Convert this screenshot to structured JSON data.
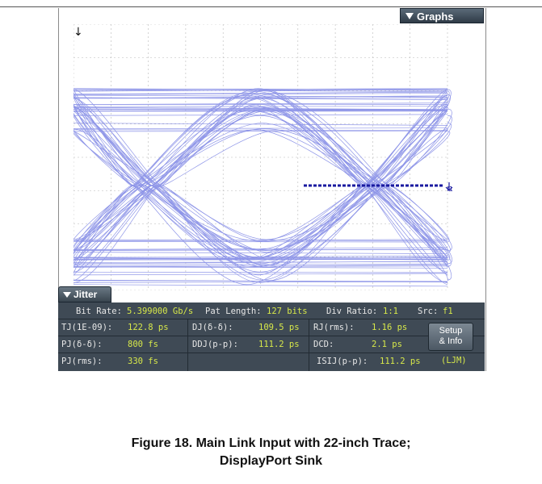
{
  "graphs_tab": {
    "label": "Graphs"
  },
  "marker": {
    "label": "f1"
  },
  "jitter_tab": {
    "label": "Jitter"
  },
  "measurements": {
    "bit_rate_label": "Bit Rate:",
    "bit_rate_value": "5.399000 Gb/s",
    "pat_length_label": "Pat Length:",
    "pat_length_value": "127 bits",
    "div_ratio_label": "Div Ratio:",
    "div_ratio_value": "1:1",
    "src_label": "Src:",
    "src_value": "f1",
    "tj_label": "TJ(1E-09):",
    "tj_value": "122.8 ps",
    "dj_label": "DJ(δ-δ):",
    "dj_value": "109.5 ps",
    "rj_label": "RJ(rms):",
    "rj_value": "1.16 ps",
    "pj_label": "PJ(δ-δ):",
    "pj_value": "800 fs",
    "ddj_label": "DDJ(p-p):",
    "ddj_value": "111.2 ps",
    "dcd_label": "DCD:",
    "dcd_value": "2.1 ps",
    "pjrms_label": "PJ(rms):",
    "pjrms_value": "330 fs",
    "isij_label": "ISIJ(p-p):",
    "isij_value": "111.2 ps",
    "ljm_value": "(LJM)"
  },
  "setup_button": {
    "line1": "Setup",
    "line2": "& Info"
  },
  "caption": {
    "line1": "Figure 18. Main Link Input with 22-inch Trace;",
    "line2": "DisplayPort Sink"
  },
  "colors": {
    "trace": "#8f96e8",
    "grid": "#b8b8b8",
    "panel": "#3f4a55",
    "value_text": "#d7e84a",
    "marker": "#1a1aa0"
  }
}
